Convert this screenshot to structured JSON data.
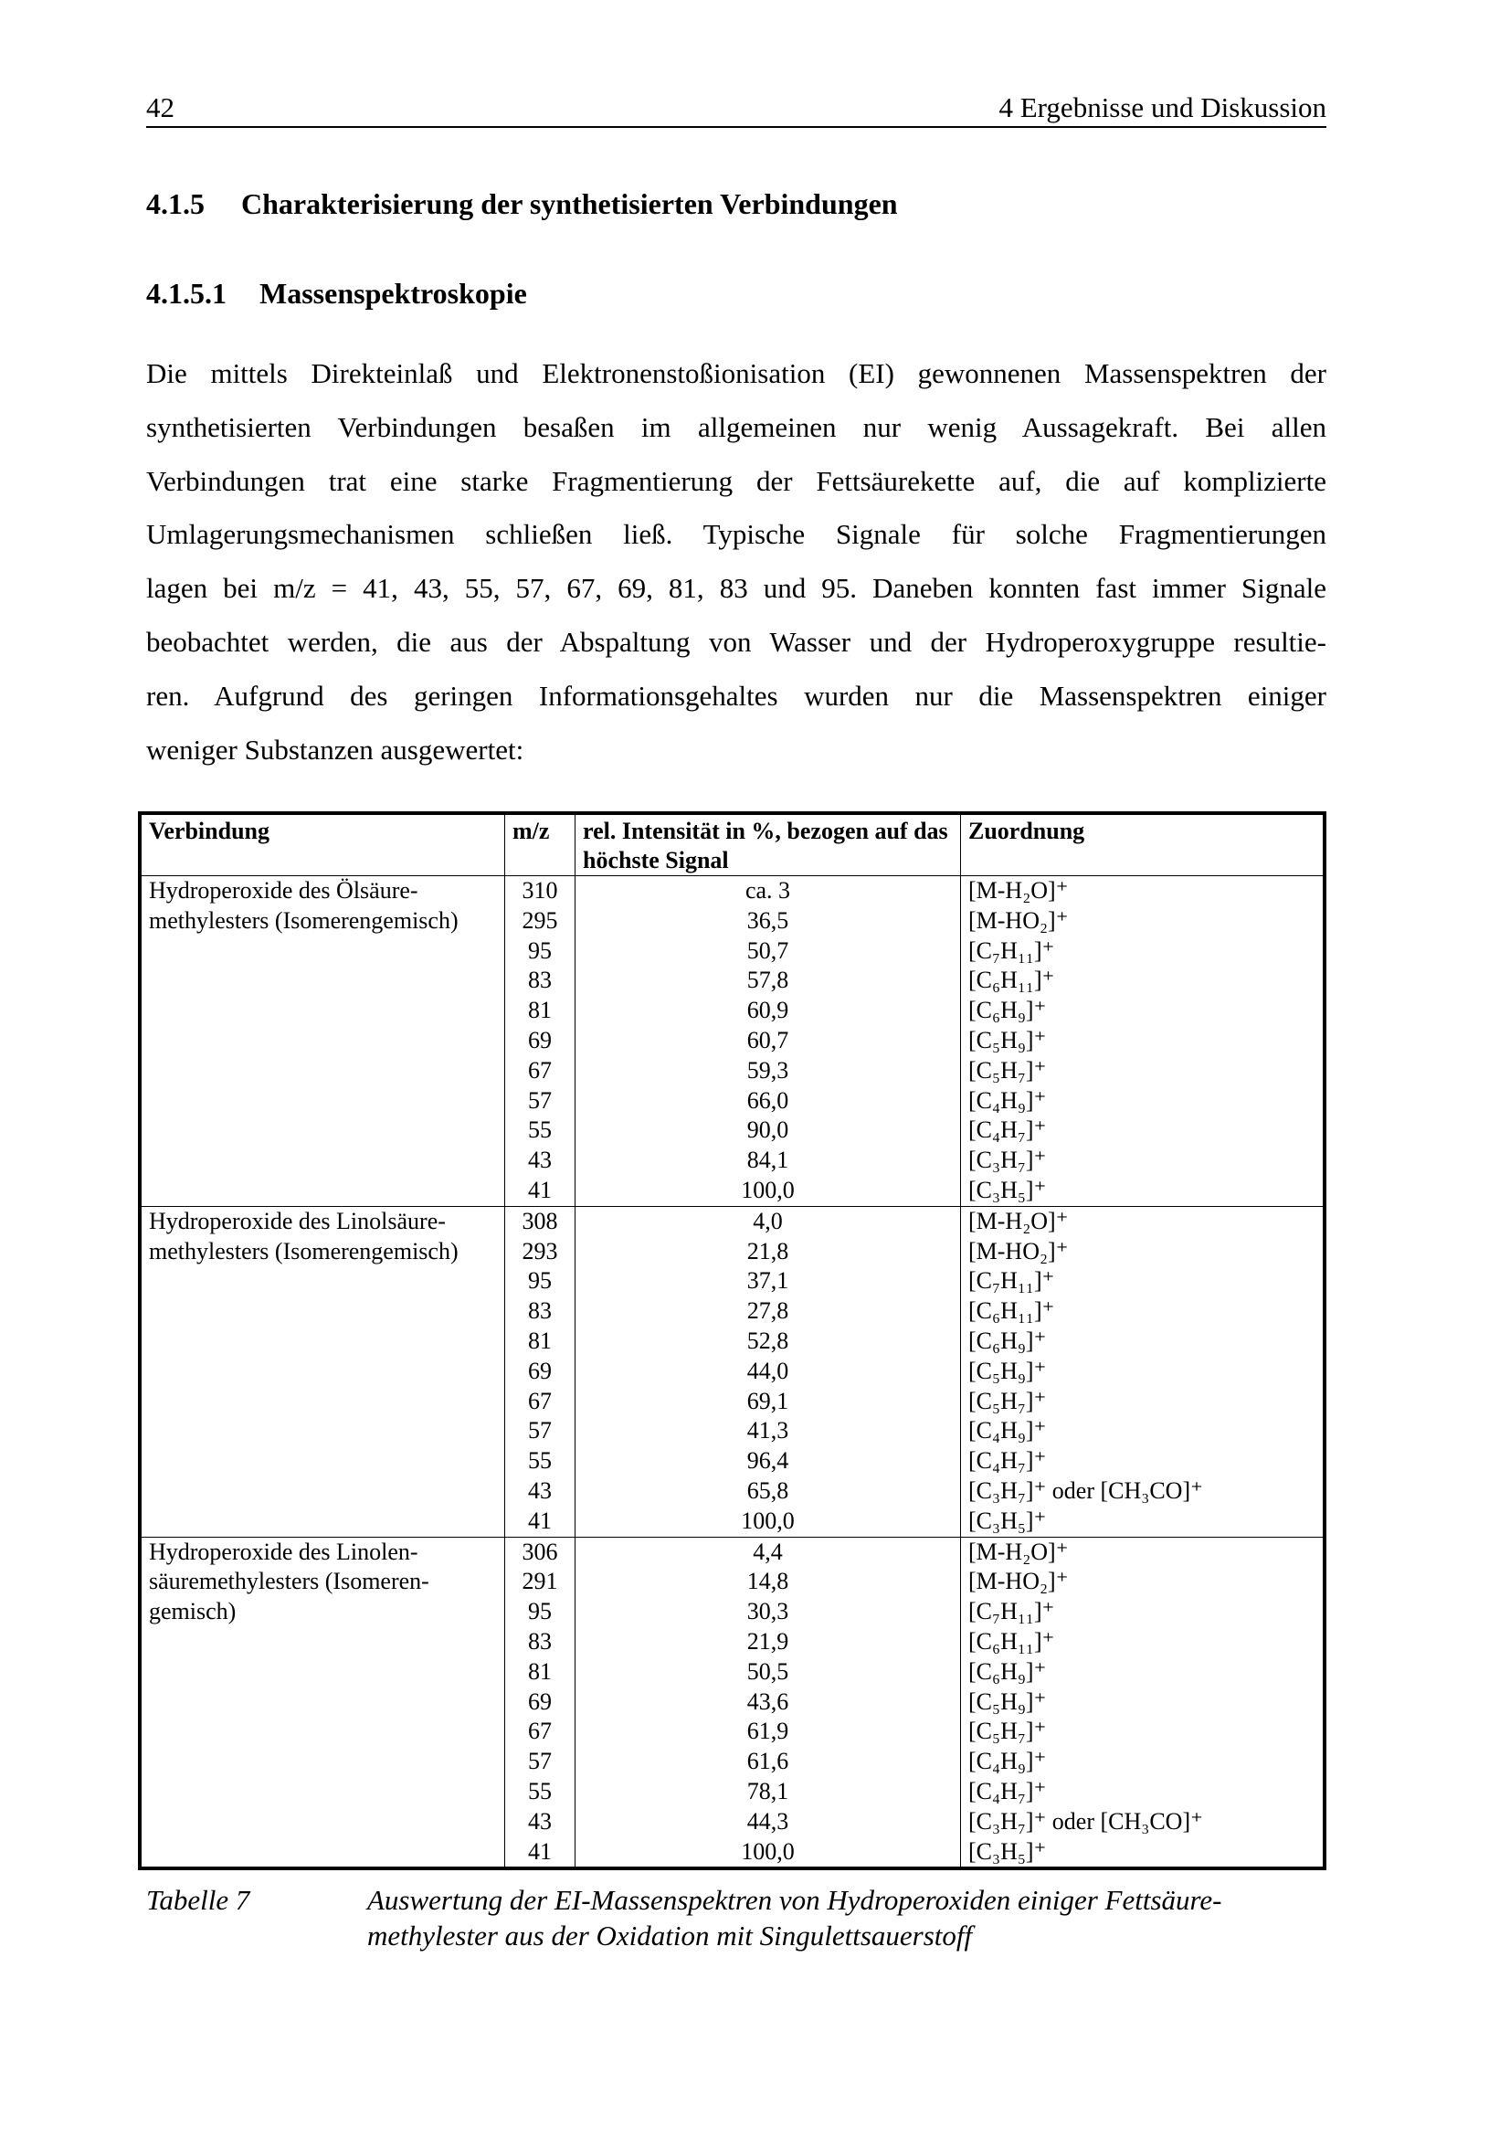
{
  "header": {
    "page_number": "42",
    "chapter": "4  Ergebnisse und Diskussion"
  },
  "section": {
    "number": "4.1.5",
    "title": "Charakterisierung der synthetisierten Verbindungen"
  },
  "subsection": {
    "number": "4.1.5.1",
    "title": "Massenspektroskopie"
  },
  "paragraph_lines": [
    "Die mittels Direkteinlaß und Elektronenstoßionisation (EI) gewonnenen Massenspektren der",
    "synthetisierten Verbindungen besaßen im allgemeinen nur wenig Aussagekraft. Bei allen",
    "Verbindungen trat eine starke Fragmentierung der Fettsäurekette auf, die auf komplizierte",
    "Umlagerungsmechanismen schließen ließ. Typische Signale für solche Fragmentierungen",
    "lagen bei m/z = 41, 43, 55, 57, 67, 69, 81, 83 und 95. Daneben konnten fast immer Signale",
    "beobachtet werden, die aus der Abspaltung von Wasser und der Hydroperoxygruppe resultie-",
    "ren. Aufgrund des geringen Informationsgehaltes wurden nur die Massenspektren einiger",
    "weniger Substanzen ausgewertet:"
  ],
  "table": {
    "headers": [
      "Verbindung",
      "m/z",
      "rel. Intensität in %, bezogen auf das höchste Signal",
      "Zuordnung"
    ],
    "groups": [
      {
        "compound_lines": [
          "Hydroperoxide des Ölsäure-",
          "methylesters (Isomerengemisch)"
        ],
        "rows": [
          [
            "310",
            "ca. 3",
            "[M-H₂O]⁺"
          ],
          [
            "295",
            "36,5",
            "[M-HO₂]⁺"
          ],
          [
            "95",
            "50,7",
            "[C₇H₁₁]⁺"
          ],
          [
            "83",
            "57,8",
            "[C₆H₁₁]⁺"
          ],
          [
            "81",
            "60,9",
            "[C₆H₉]⁺"
          ],
          [
            "69",
            "60,7",
            "[C₅H₉]⁺"
          ],
          [
            "67",
            "59,3",
            "[C₅H₇]⁺"
          ],
          [
            "57",
            "66,0",
            "[C₄H₉]⁺"
          ],
          [
            "55",
            "90,0",
            "[C₄H₇]⁺"
          ],
          [
            "43",
            "84,1",
            "[C₃H₇]⁺"
          ],
          [
            "41",
            "100,0",
            "[C₃H₅]⁺"
          ]
        ]
      },
      {
        "compound_lines": [
          "Hydroperoxide des Linolsäure-",
          "methylesters (Isomerengemisch)"
        ],
        "rows": [
          [
            "308",
            "4,0",
            "[M-H₂O]⁺"
          ],
          [
            "293",
            "21,8",
            "[M-HO₂]⁺"
          ],
          [
            "95",
            "37,1",
            "[C₇H₁₁]⁺"
          ],
          [
            "83",
            "27,8",
            "[C₆H₁₁]⁺"
          ],
          [
            "81",
            "52,8",
            "[C₆H₉]⁺"
          ],
          [
            "69",
            "44,0",
            "[C₅H₉]⁺"
          ],
          [
            "67",
            "69,1",
            "[C₅H₇]⁺"
          ],
          [
            "57",
            "41,3",
            "[C₄H₉]⁺"
          ],
          [
            "55",
            "96,4",
            "[C₄H₇]⁺"
          ],
          [
            "43",
            "65,8",
            "[C₃H₇]⁺ oder [CH₃CO]⁺"
          ],
          [
            "41",
            "100,0",
            "[C₃H₅]⁺"
          ]
        ]
      },
      {
        "compound_lines": [
          "Hydroperoxide des Linolen-",
          "säuremethylesters (Isomeren-",
          "gemisch)"
        ],
        "rows": [
          [
            "306",
            "4,4",
            "[M-H₂O]⁺"
          ],
          [
            "291",
            "14,8",
            "[M-HO₂]⁺"
          ],
          [
            "95",
            "30,3",
            "[C₇H₁₁]⁺"
          ],
          [
            "83",
            "21,9",
            "[C₆H₁₁]⁺"
          ],
          [
            "81",
            "50,5",
            "[C₆H₉]⁺"
          ],
          [
            "69",
            "43,6",
            "[C₅H₉]⁺"
          ],
          [
            "67",
            "61,9",
            "[C₅H₇]⁺"
          ],
          [
            "57",
            "61,6",
            "[C₄H₉]⁺"
          ],
          [
            "55",
            "78,1",
            "[C₄H₇]⁺"
          ],
          [
            "43",
            "44,3",
            "[C₃H₇]⁺ oder [CH₃CO]⁺"
          ],
          [
            "41",
            "100,0",
            "[C₃H₅]⁺"
          ]
        ]
      }
    ]
  },
  "caption": {
    "label": "Tabelle 7",
    "text": "Auswertung der EI-Massenspektren von Hydroperoxiden einiger Fettsäure-methylester aus der Oxidation mit Singulettsauerstoff"
  }
}
